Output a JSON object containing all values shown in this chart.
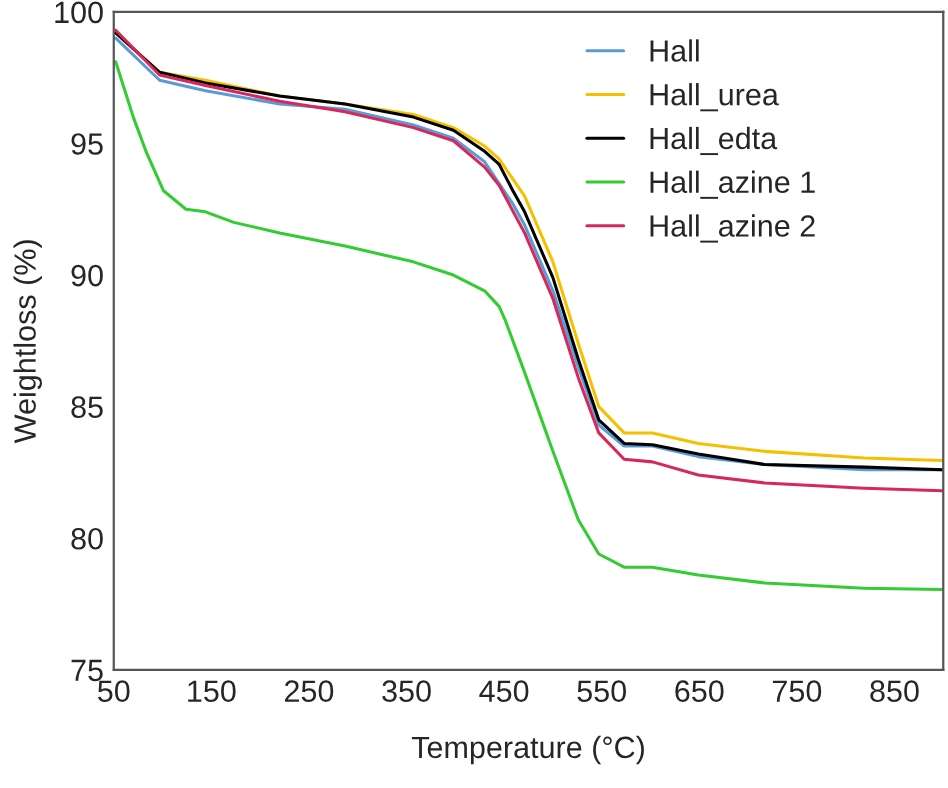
{
  "chart_data": {
    "type": "line",
    "xlabel": "Temperature (°C)",
    "ylabel": "Weightloss (%)",
    "xlim": [
      50,
      900
    ],
    "ylim": [
      75,
      100
    ],
    "xticks": [
      50,
      150,
      250,
      350,
      450,
      550,
      650,
      750,
      850
    ],
    "yticks": [
      75,
      80,
      85,
      90,
      95,
      100
    ],
    "grid": false,
    "legend": "top right",
    "marker": "none",
    "line_style": "solid",
    "series": [
      {
        "name": "Hall",
        "color": "#5b9bd5",
        "x": [
          52,
          97,
          144,
          220,
          287,
          357,
          398,
          430,
          459,
          471,
          500,
          526,
          547,
          573,
          602,
          649,
          717,
          819,
          899
        ],
        "values": [
          99.0,
          97.4,
          97.0,
          96.5,
          96.3,
          95.7,
          95.2,
          94.3,
          92.7,
          91.9,
          89.4,
          86.5,
          84.3,
          83.5,
          83.5,
          83.1,
          82.8,
          82.6,
          82.6
        ]
      },
      {
        "name": "Hall_urea",
        "color": "#f5c000",
        "x": [
          52,
          97,
          144,
          220,
          287,
          357,
          398,
          430,
          445,
          471,
          500,
          526,
          547,
          573,
          602,
          649,
          717,
          819,
          899
        ],
        "values": [
          99.2,
          97.7,
          97.4,
          96.8,
          96.5,
          96.1,
          95.6,
          94.9,
          94.4,
          93.0,
          90.5,
          87.4,
          85.0,
          84.0,
          84.0,
          83.6,
          83.3,
          83.05,
          82.95
        ]
      },
      {
        "name": "Hall_edta",
        "color": "#000000",
        "x": [
          52,
          97,
          144,
          220,
          287,
          357,
          398,
          430,
          445,
          459,
          471,
          500,
          526,
          547,
          573,
          602,
          649,
          717,
          819,
          899
        ],
        "values": [
          99.2,
          97.7,
          97.3,
          96.8,
          96.5,
          96.0,
          95.5,
          94.7,
          94.2,
          93.2,
          92.4,
          89.9,
          86.8,
          84.5,
          83.6,
          83.55,
          83.2,
          82.8,
          82.7,
          82.6
        ]
      },
      {
        "name": "Hall_azine 1",
        "color": "#33cc33",
        "x": [
          52,
          70,
          83,
          101,
          124,
          144,
          173,
          220,
          287,
          357,
          398,
          430,
          445,
          451,
          471,
          500,
          526,
          547,
          573,
          602,
          649,
          717,
          819,
          899
        ],
        "values": [
          98.1,
          96.0,
          94.7,
          93.2,
          92.5,
          92.4,
          92.0,
          91.6,
          91.1,
          90.5,
          90.0,
          89.4,
          88.8,
          88.3,
          86.3,
          83.3,
          80.7,
          79.4,
          78.9,
          78.9,
          78.6,
          78.3,
          78.1,
          78.05
        ]
      },
      {
        "name": "Hall_azine 2",
        "color": "#d6295a",
        "x": [
          52,
          97,
          144,
          220,
          287,
          357,
          398,
          430,
          445,
          471,
          500,
          526,
          547,
          573,
          602,
          649,
          717,
          819,
          899
        ],
        "values": [
          99.3,
          97.6,
          97.2,
          96.6,
          96.2,
          95.6,
          95.1,
          94.1,
          93.4,
          91.6,
          89.1,
          86.1,
          84.0,
          83.0,
          82.9,
          82.4,
          82.1,
          81.9,
          81.8
        ]
      }
    ]
  }
}
